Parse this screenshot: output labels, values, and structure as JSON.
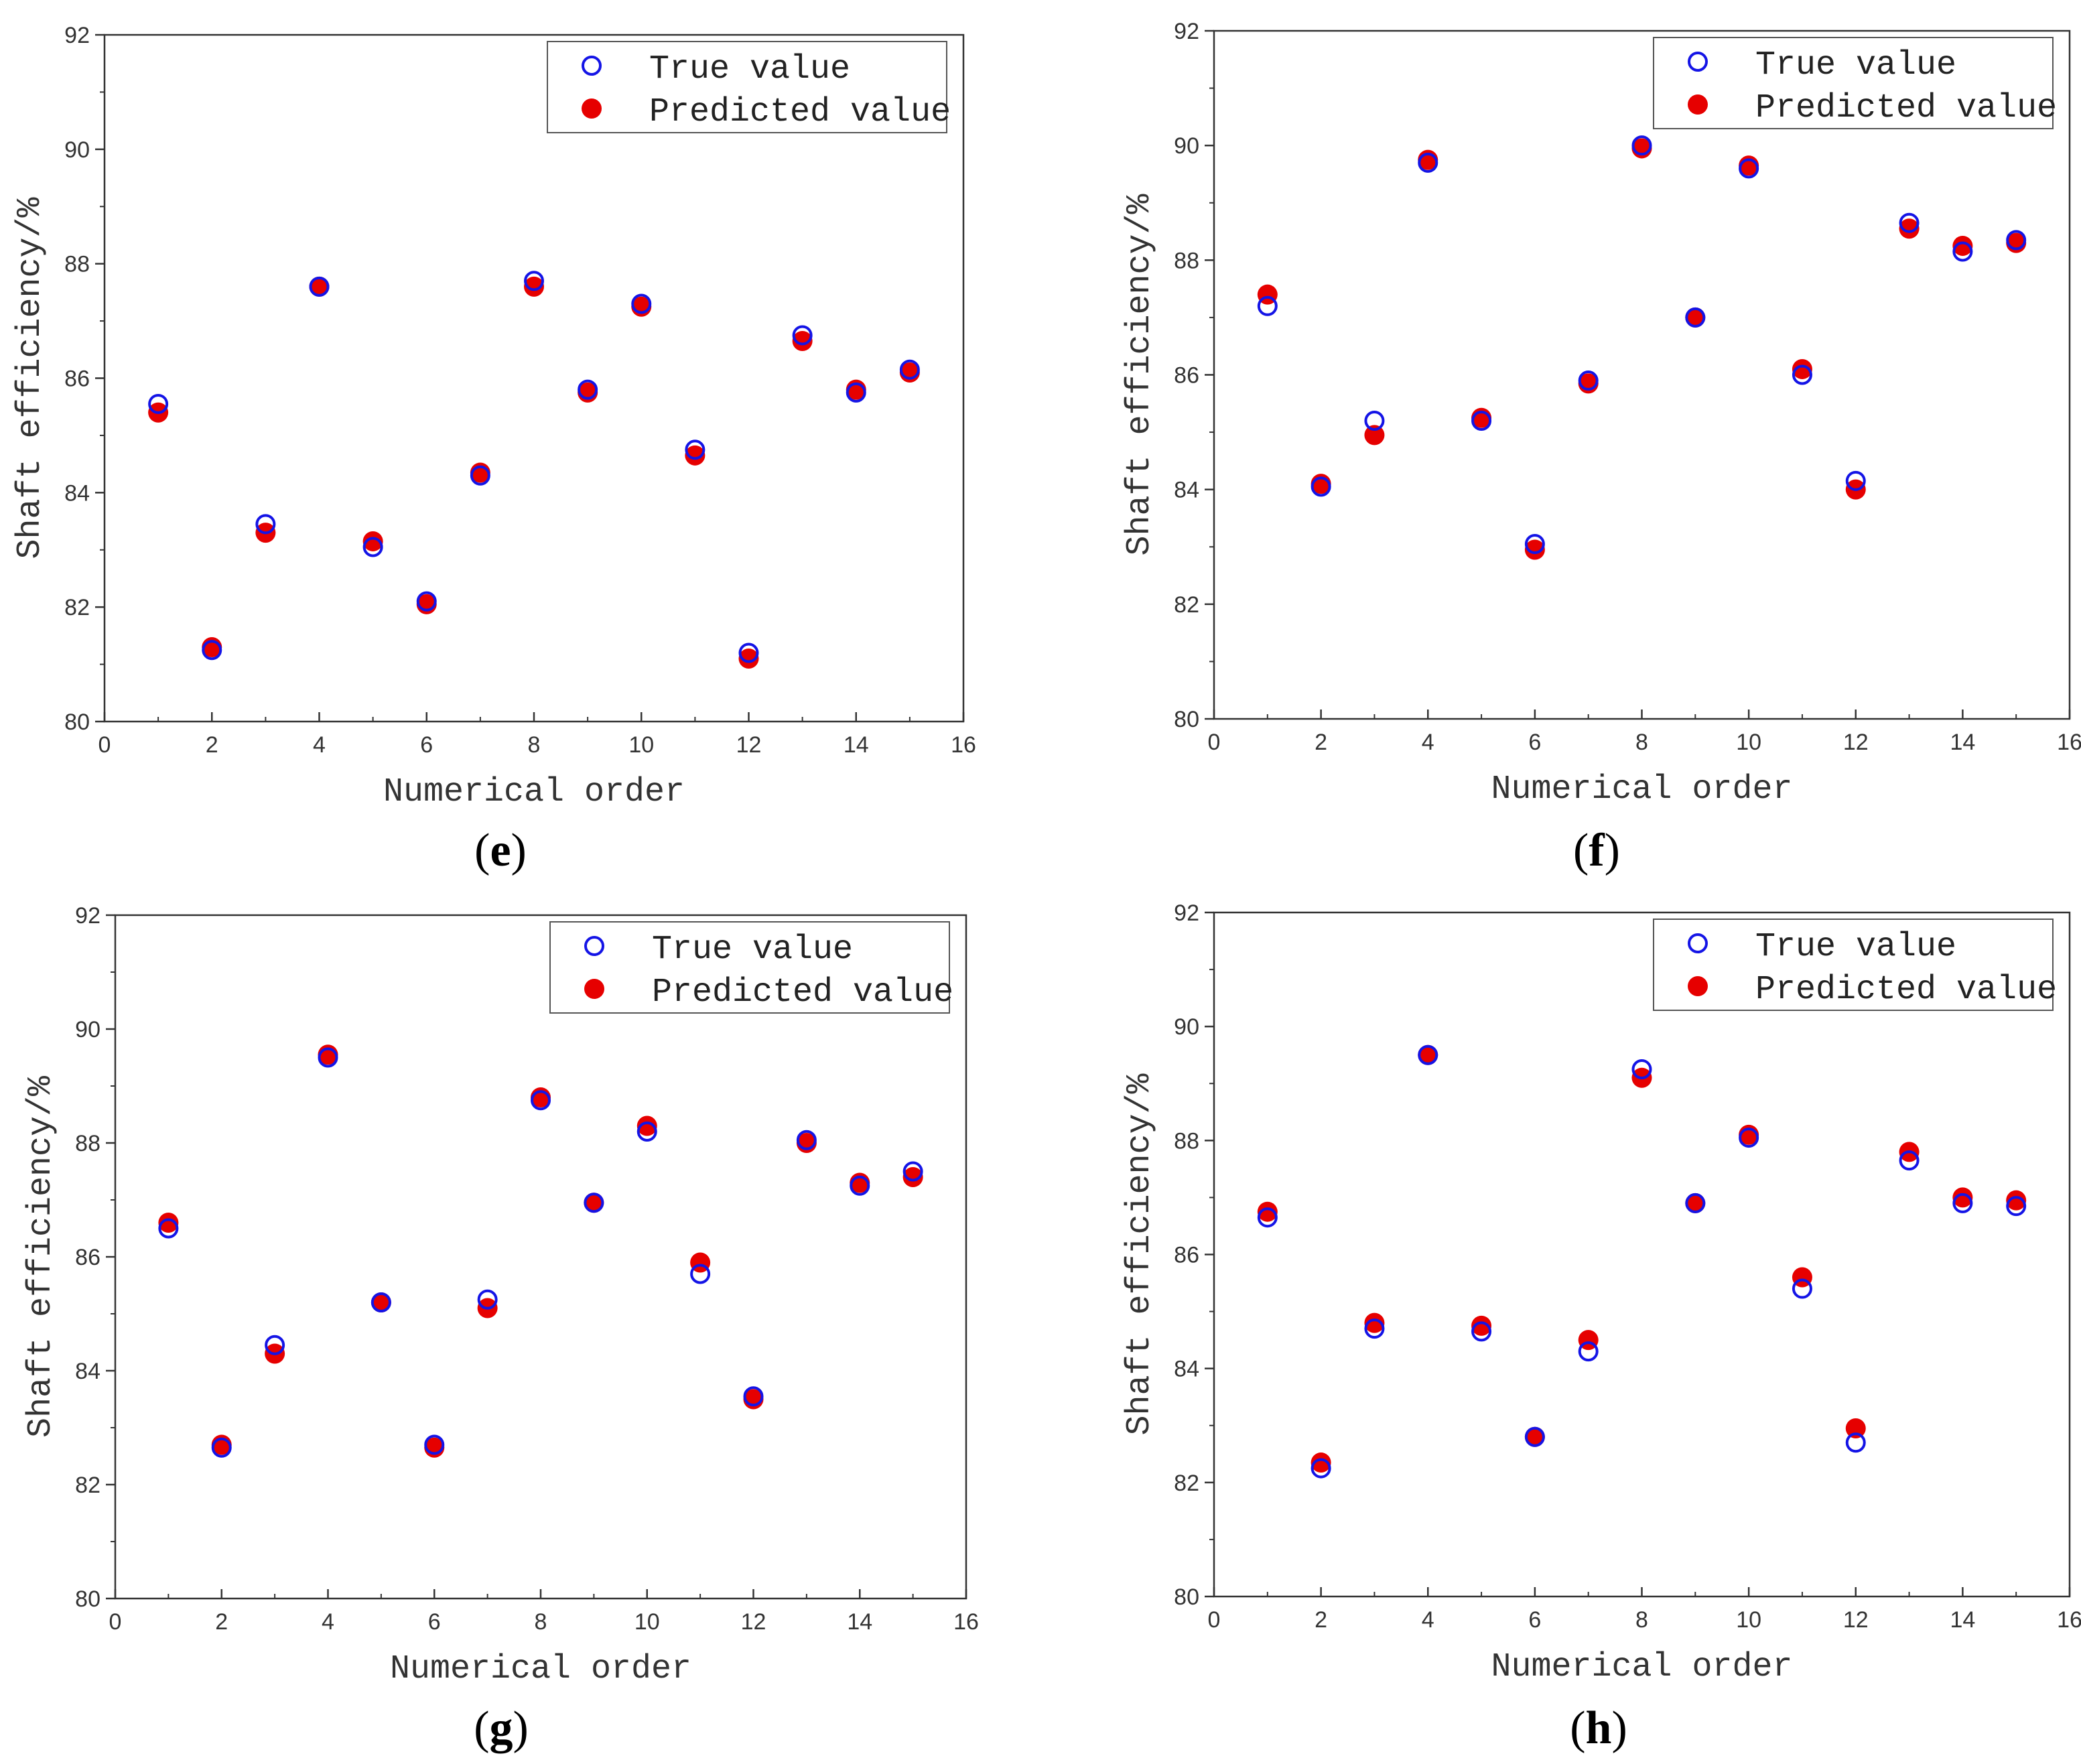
{
  "colors": {
    "true_marker": "#1414e6",
    "pred_marker": "#e60000",
    "axis": "#333333",
    "legend_border": "#555555"
  },
  "chart_data": [
    {
      "type": "scatter",
      "panel_label": "e",
      "title": "",
      "xlabel": "Numerical order",
      "ylabel": "Shaft efficiency/%",
      "xlim": [
        0,
        16
      ],
      "ylim": [
        80,
        92
      ],
      "xticks": [
        "0",
        "2",
        "4",
        "6",
        "8",
        "10",
        "12",
        "14",
        "16"
      ],
      "yticks": [
        "80",
        "82",
        "84",
        "86",
        "88",
        "90",
        "92"
      ],
      "legend": {
        "position": "top-right"
      },
      "x": [
        1,
        2,
        3,
        4,
        5,
        6,
        7,
        8,
        9,
        10,
        11,
        12,
        13,
        14,
        15
      ],
      "series": [
        {
          "name": "True value",
          "marker": "open-circle",
          "values": [
            85.55,
            81.25,
            83.45,
            87.6,
            83.05,
            82.1,
            84.3,
            87.7,
            85.8,
            87.3,
            84.75,
            81.2,
            86.75,
            85.75,
            86.15
          ]
        },
        {
          "name": "Predicted value",
          "marker": "filled-circle",
          "values": [
            85.4,
            81.3,
            83.3,
            87.6,
            83.15,
            82.05,
            84.35,
            87.6,
            85.75,
            87.25,
            84.65,
            81.1,
            86.65,
            85.8,
            86.1
          ]
        }
      ]
    },
    {
      "type": "scatter",
      "panel_label": "f",
      "title": "",
      "xlabel": "Numerical order",
      "ylabel": "Shaft efficiency/%",
      "xlim": [
        0,
        16
      ],
      "ylim": [
        80,
        92
      ],
      "xticks": [
        "0",
        "2",
        "4",
        "6",
        "8",
        "10",
        "12",
        "14",
        "16"
      ],
      "yticks": [
        "80",
        "82",
        "84",
        "86",
        "88",
        "90",
        "92"
      ],
      "legend": {
        "position": "top-right"
      },
      "x": [
        1,
        2,
        3,
        4,
        5,
        6,
        7,
        8,
        9,
        10,
        11,
        12,
        13,
        14,
        15
      ],
      "series": [
        {
          "name": "True value",
          "marker": "open-circle",
          "values": [
            87.2,
            84.05,
            85.2,
            89.7,
            85.2,
            83.05,
            85.9,
            90.0,
            87.0,
            89.6,
            86.0,
            84.15,
            88.65,
            88.15,
            88.35
          ]
        },
        {
          "name": "Predicted value",
          "marker": "filled-circle",
          "values": [
            87.4,
            84.1,
            84.95,
            89.75,
            85.25,
            82.95,
            85.85,
            89.95,
            87.0,
            89.65,
            86.1,
            84.0,
            88.55,
            88.25,
            88.3
          ]
        }
      ]
    },
    {
      "type": "scatter",
      "panel_label": "g",
      "title": "",
      "xlabel": "Numerical order",
      "ylabel": "Shaft efficiency/%",
      "xlim": [
        0,
        16
      ],
      "ylim": [
        80,
        92
      ],
      "xticks": [
        "0",
        "2",
        "4",
        "6",
        "8",
        "10",
        "12",
        "14",
        "16"
      ],
      "yticks": [
        "80",
        "82",
        "84",
        "86",
        "88",
        "90",
        "92"
      ],
      "legend": {
        "position": "top-right"
      },
      "x": [
        1,
        2,
        3,
        4,
        5,
        6,
        7,
        8,
        9,
        10,
        11,
        12,
        13,
        14,
        15
      ],
      "series": [
        {
          "name": "True value",
          "marker": "open-circle",
          "values": [
            86.5,
            82.65,
            84.45,
            89.5,
            85.2,
            82.7,
            85.25,
            88.75,
            86.95,
            88.2,
            85.7,
            83.55,
            88.05,
            87.25,
            87.5
          ]
        },
        {
          "name": "Predicted value",
          "marker": "filled-circle",
          "values": [
            86.6,
            82.7,
            84.3,
            89.55,
            85.2,
            82.65,
            85.1,
            88.8,
            86.95,
            88.3,
            85.9,
            83.5,
            88.0,
            87.3,
            87.4
          ]
        }
      ]
    },
    {
      "type": "scatter",
      "panel_label": "h",
      "title": "",
      "xlabel": "Numerical order",
      "ylabel": "Shaft efficiency/%",
      "xlim": [
        0,
        16
      ],
      "ylim": [
        80,
        92
      ],
      "xticks": [
        "0",
        "2",
        "4",
        "6",
        "8",
        "10",
        "12",
        "14",
        "16"
      ],
      "yticks": [
        "80",
        "82",
        "84",
        "86",
        "88",
        "90",
        "92"
      ],
      "legend": {
        "position": "top-right"
      },
      "x": [
        1,
        2,
        3,
        4,
        5,
        6,
        7,
        8,
        9,
        10,
        11,
        12,
        13,
        14,
        15
      ],
      "series": [
        {
          "name": "True value",
          "marker": "open-circle",
          "values": [
            86.65,
            82.25,
            84.7,
            89.5,
            84.65,
            82.8,
            84.3,
            89.25,
            86.9,
            88.05,
            85.4,
            82.7,
            87.65,
            86.9,
            86.85
          ]
        },
        {
          "name": "Predicted value",
          "marker": "filled-circle",
          "values": [
            86.75,
            82.35,
            84.8,
            89.5,
            84.75,
            82.8,
            84.5,
            89.1,
            86.9,
            88.1,
            85.6,
            82.95,
            87.8,
            87.0,
            86.95
          ]
        }
      ]
    }
  ]
}
